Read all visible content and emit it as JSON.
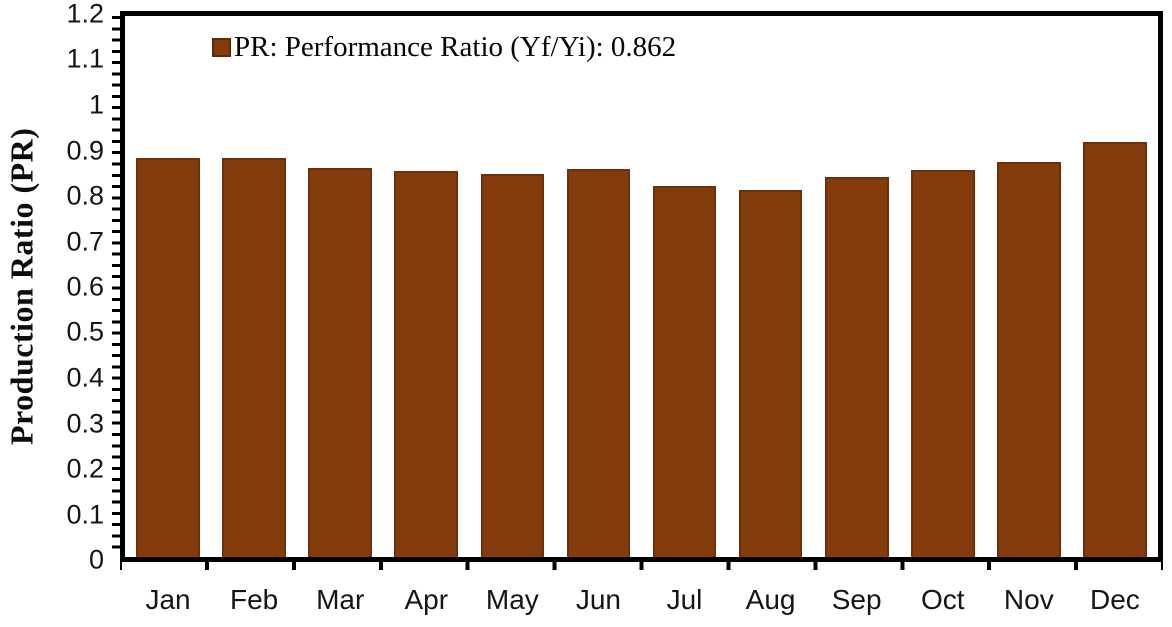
{
  "chart_data": {
    "type": "bar",
    "title": "",
    "categories": [
      "Jan",
      "Feb",
      "Mar",
      "Apr",
      "May",
      "Jun",
      "Jul",
      "Aug",
      "Sep",
      "Oct",
      "Nov",
      "Dec"
    ],
    "values": [
      0.884,
      0.886,
      0.862,
      0.857,
      0.85,
      0.86,
      0.823,
      0.814,
      0.844,
      0.858,
      0.876,
      0.92
    ],
    "series_name": "PR",
    "xlabel": "",
    "ylabel": "Production Ratio (PR)",
    "ylim": [
      0,
      1.2
    ],
    "ytick_step": 0.1,
    "minor_tick_step": 0.025,
    "grid": false,
    "frame": true,
    "bar_color": "#843C0C",
    "bar_border_color": "#6E3009",
    "legend_position": "top-left-inside",
    "legend_label": "PR: Performance Ratio (Yf/Yi): 0.862",
    "average_value_shown": "0.862"
  },
  "yaxis": {
    "label": "Production Ratio (PR)",
    "tick_labels": [
      "1.2",
      "1.1",
      "1",
      "0.9",
      "0.8",
      "0.7",
      "0.6",
      "0.5",
      "0.4",
      "0.3",
      "0.2",
      "0.1",
      "0"
    ]
  },
  "legend": {
    "swatch_color": "#843C0C",
    "text": "PR: Performance Ratio (Yf/Yi): 0.862"
  }
}
